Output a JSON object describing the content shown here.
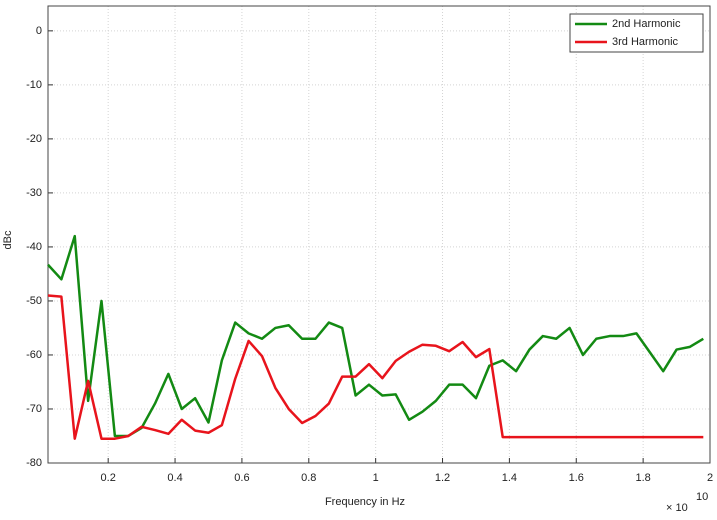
{
  "chart_data": {
    "type": "line",
    "x_label": "Frequency in Hz",
    "y_label": "dBc",
    "x_multiplier": {
      "base": "× 10",
      "exponent": "10"
    },
    "x": [
      0.02,
      0.06,
      0.1,
      0.14,
      0.18,
      0.22,
      0.26,
      0.3,
      0.34,
      0.38,
      0.42,
      0.46,
      0.5,
      0.54,
      0.58,
      0.62,
      0.66,
      0.7,
      0.74,
      0.78,
      0.82,
      0.86,
      0.9,
      0.94,
      0.98,
      1.02,
      1.06,
      1.1,
      1.14,
      1.18,
      1.22,
      1.26,
      1.3,
      1.34,
      1.38,
      1.42,
      1.46,
      1.5,
      1.54,
      1.58,
      1.62,
      1.66,
      1.7,
      1.74,
      1.78,
      1.82,
      1.86,
      1.9,
      1.94,
      1.98
    ],
    "series": [
      {
        "name": "2nd Harmonic",
        "color": "#138a13",
        "values": [
          -43.3,
          -46,
          -38,
          -68.5,
          -50,
          -75,
          -75,
          -73.5,
          -69,
          -63.5,
          -70,
          -68,
          -72.5,
          -61,
          -54,
          -56,
          -57,
          -55,
          -54.5,
          -57,
          -57,
          -54,
          -55,
          -67.5,
          -65.5,
          -67.5,
          -67.3,
          -72,
          -70.5,
          -68.5,
          -65.5,
          -65.5,
          -68,
          -62,
          -61,
          -63,
          -59,
          -56.5,
          -57,
          -55,
          -60,
          -57,
          -56.5,
          -56.5,
          -56,
          -59.5,
          -63,
          -59,
          -58.5,
          -57
        ]
      },
      {
        "name": "3rd Harmonic",
        "color": "#e8141c",
        "values": [
          -49,
          -49.2,
          -75.5,
          -64.8,
          -75.5,
          -75.5,
          -75,
          -73.3,
          -73.9,
          -74.6,
          -72,
          -74,
          -74.4,
          -73,
          -64.4,
          -57.4,
          -60.2,
          -66.1,
          -70,
          -72.6,
          -71.3,
          -69,
          -64,
          -64,
          -61.7,
          -64.3,
          -61.1,
          -59.4,
          -58.1,
          -58.3,
          -59.3,
          -57.6,
          -60.4,
          -58.9,
          -75.2,
          -75.2,
          -75.2,
          -75.2,
          -75.2,
          -75.2,
          -75.2,
          -75.2,
          -75.2,
          -75.2,
          -75.2,
          -75.2,
          -75.2,
          -75.2,
          -75.2,
          -75.2
        ]
      }
    ],
    "xlim": [
      0.02,
      2
    ],
    "xticks": [
      0.2,
      0.4,
      0.6,
      0.8,
      1,
      1.2,
      1.4,
      1.6,
      1.8,
      2
    ],
    "ylim": [
      -80,
      4.6
    ],
    "yticks": [
      -80,
      -70,
      -60,
      -50,
      -40,
      -30,
      -20,
      -10,
      0
    ],
    "grid": true,
    "legend": "top-right"
  }
}
